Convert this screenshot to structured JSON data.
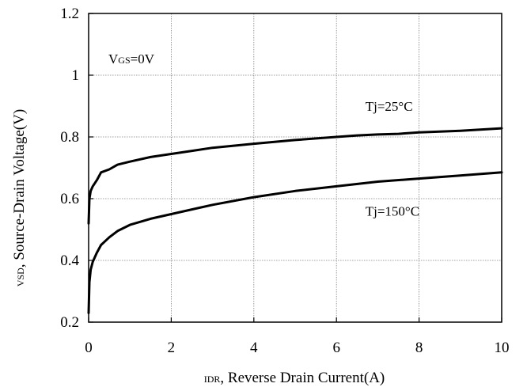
{
  "chart_data": {
    "type": "line",
    "xlabel": {
      "sub": "IDR",
      "rest": ", Reverse Drain Current(A)"
    },
    "ylabel": {
      "sub": "VSD",
      "rest": ", Source-Drain Voltage(V)"
    },
    "xlim": [
      0,
      10
    ],
    "ylim": [
      0.2,
      1.2
    ],
    "xticks": [
      0,
      2,
      4,
      6,
      8,
      10
    ],
    "yticks": [
      0.2,
      0.4,
      0.6,
      0.8,
      1.0,
      1.2
    ],
    "xtick_labels": [
      "0",
      "2",
      "4",
      "6",
      "8",
      "10"
    ],
    "ytick_labels": [
      "0.2",
      "0.4",
      "0.6",
      "0.8",
      "1",
      "1.2"
    ],
    "grid": true,
    "condition": {
      "main": "V",
      "sub": "GS",
      "rest": "=0V"
    },
    "series": [
      {
        "name": "Tj=25°C",
        "x": [
          0,
          0.02,
          0.05,
          0.1,
          0.2,
          0.3,
          0.5,
          0.7,
          1,
          1.5,
          2,
          2.5,
          3,
          4,
          5,
          6,
          6.5,
          7,
          7.5,
          8,
          9,
          10
        ],
        "y": [
          0.52,
          0.6,
          0.625,
          0.64,
          0.66,
          0.685,
          0.695,
          0.71,
          0.72,
          0.735,
          0.745,
          0.755,
          0.765,
          0.778,
          0.79,
          0.8,
          0.805,
          0.808,
          0.81,
          0.815,
          0.82,
          0.828
        ]
      },
      {
        "name": "Tj=150°C",
        "x": [
          0,
          0.02,
          0.05,
          0.1,
          0.2,
          0.3,
          0.5,
          0.7,
          1,
          1.5,
          2,
          3,
          4,
          5,
          6,
          7,
          8,
          9,
          10
        ],
        "y": [
          0.23,
          0.33,
          0.37,
          0.395,
          0.425,
          0.45,
          0.475,
          0.495,
          0.515,
          0.535,
          0.55,
          0.58,
          0.605,
          0.625,
          0.64,
          0.655,
          0.665,
          0.675,
          0.685
        ]
      }
    ],
    "annotations": [
      {
        "text": "Tj=25°C",
        "x": 6.7,
        "y": 0.885
      },
      {
        "text": "Tj=150°C",
        "x": 6.7,
        "y": 0.545
      }
    ],
    "colors": {
      "line": "#000000",
      "grid": "#808080",
      "axis": "#000000"
    }
  }
}
